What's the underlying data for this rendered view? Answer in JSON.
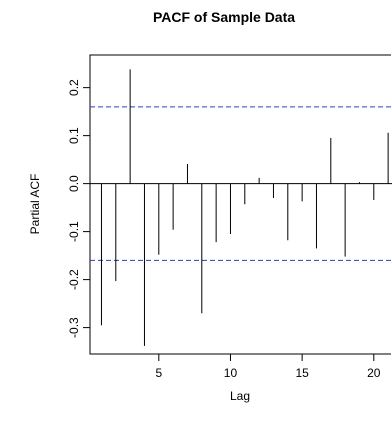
{
  "chart_data": {
    "type": "bar",
    "title": "PACF of Sample Data",
    "xlabel": "Lag",
    "ylabel": "Partial ACF",
    "x": [
      1,
      2,
      3,
      4,
      5,
      6,
      7,
      8,
      9,
      10,
      11,
      12,
      13,
      14,
      15,
      16,
      17,
      18,
      19,
      20,
      21
    ],
    "values": [
      -0.295,
      -0.203,
      0.238,
      -0.338,
      -0.148,
      -0.096,
      0.041,
      -0.27,
      -0.122,
      -0.105,
      -0.043,
      0.012,
      -0.03,
      -0.118,
      -0.037,
      -0.135,
      0.095,
      -0.152,
      0.003,
      -0.034,
      0.106
    ],
    "confidence_limits": [
      0.16,
      -0.16
    ],
    "xticks": [
      5,
      10,
      15,
      20
    ],
    "yticks": [
      -0.3,
      -0.2,
      -0.1,
      0.0,
      0.1,
      0.2
    ],
    "xlim": [
      0.2,
      21.2
    ],
    "ylim": [
      -0.355,
      0.268
    ],
    "grid": false,
    "colors": {
      "bars": "#000000",
      "confidence": "#2b3fc4",
      "zero_line": "#000000"
    }
  }
}
